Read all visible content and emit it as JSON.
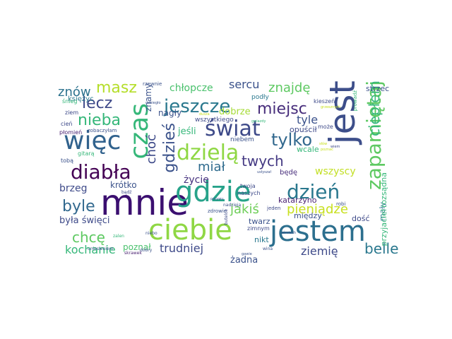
{
  "words": [
    {
      "text": "mnie",
      "color": "#3b0f70"
    },
    {
      "text": "gdzie",
      "color": "#27a38a"
    },
    {
      "text": "ciebie",
      "color": "#8fd744"
    },
    {
      "text": "jestem",
      "color": "#2c6f8e"
    },
    {
      "text": "jest",
      "color": "#3d4e8a"
    },
    {
      "text": "więc",
      "color": "#31628d"
    },
    {
      "text": "czas",
      "color": "#35b779"
    },
    {
      "text": "świat",
      "color": "#3e4a89"
    },
    {
      "text": "dzielą",
      "color": "#8fd744"
    },
    {
      "text": "diabła",
      "color": "#440154"
    },
    {
      "text": "dzień",
      "color": "#2a788e"
    },
    {
      "text": "zapamiętaj",
      "color": "#5ec962"
    },
    {
      "text": "jeszcze",
      "color": "#2a788e"
    },
    {
      "text": "gdzieś",
      "color": "#3b528b"
    },
    {
      "text": "nieba",
      "color": "#35b779"
    },
    {
      "text": "lecz",
      "color": "#3e4989"
    },
    {
      "text": "tylko",
      "color": "#31688e"
    },
    {
      "text": "ciepłem",
      "color": "#35b779"
    },
    {
      "text": "miejsc",
      "color": "#472d7b"
    },
    {
      "text": "masz",
      "color": "#b5de2b"
    },
    {
      "text": "znów",
      "color": "#2c728e"
    },
    {
      "text": "znajdę",
      "color": "#5ec962"
    },
    {
      "text": "sercu",
      "color": "#3b528b"
    },
    {
      "text": "chłopcze",
      "color": "#4ac16d"
    },
    {
      "text": "miał",
      "color": "#2f6b8e"
    },
    {
      "text": "twych",
      "color": "#443983"
    },
    {
      "text": "choć",
      "color": "#3e4a89"
    },
    {
      "text": "tyle",
      "color": "#3b528b"
    },
    {
      "text": "byle",
      "color": "#31688e"
    },
    {
      "text": "jakiś",
      "color": "#6ece58"
    },
    {
      "text": "pieniądze",
      "color": "#c8e020"
    },
    {
      "text": "chcę",
      "color": "#5ec962"
    },
    {
      "text": "belle",
      "color": "#2a788e"
    },
    {
      "text": "kochanie",
      "color": "#35b779"
    },
    {
      "text": "trudniej",
      "color": "#3e4a89"
    },
    {
      "text": "ziemię",
      "color": "#3e4a89"
    },
    {
      "text": "brzeg",
      "color": "#3e4a89"
    },
    {
      "text": "krótko",
      "color": "#3b528b"
    },
    {
      "text": "życie",
      "color": "#46317e"
    },
    {
      "text": "wszyscy",
      "color": "#c2df23"
    },
    {
      "text": "była święci",
      "color": "#3e4a89"
    },
    {
      "text": "poznał",
      "color": "#4ac16d"
    },
    {
      "text": "żadna",
      "color": "#3b528b"
    },
    {
      "text": "nagły",
      "color": "#3b528b"
    },
    {
      "text": "dobrze",
      "color": "#a5db36"
    },
    {
      "text": "jeśli",
      "color": "#35b779"
    },
    {
      "text": "opuścił",
      "color": "#3e4a89"
    },
    {
      "text": "katarzyno",
      "color": "#481f70"
    },
    {
      "text": "mały",
      "color": "#2a788e"
    },
    {
      "text": "między",
      "color": "#3b528b"
    },
    {
      "text": "dość",
      "color": "#3e4a89"
    },
    {
      "text": "twarz",
      "color": "#3b528b"
    },
    {
      "text": "nikt",
      "color": "#2a788e"
    },
    {
      "text": "będę",
      "color": "#472d7b"
    },
    {
      "text": "wcale",
      "color": "#35b779"
    },
    {
      "text": "znamy",
      "color": "#3b528b"
    },
    {
      "text": "rozsądna",
      "color": "#35b779"
    },
    {
      "text": "przyjaciel",
      "color": "#35b779"
    },
    {
      "text": "strzec",
      "color": "#3b528b"
    },
    {
      "text": "księżyc",
      "color": "#2a788e"
    },
    {
      "text": "wszystkiego",
      "color": "#3e4a89"
    },
    {
      "text": "niebem",
      "color": "#3b528b"
    },
    {
      "text": "podły",
      "color": "#2a788e"
    },
    {
      "text": "kieszeń",
      "color": "#3e4a89"
    },
    {
      "text": "naszych",
      "color": "#3e4a89"
    },
    {
      "text": "twoja",
      "color": "#3e4a89"
    },
    {
      "text": "zimnym",
      "color": "#3e4a89"
    },
    {
      "text": "śnieg",
      "color": "#35b779"
    },
    {
      "text": "ziem",
      "color": "#3e4a89"
    },
    {
      "text": "cień",
      "color": "#3e4a89"
    },
    {
      "text": "płomień",
      "color": "#481f70"
    },
    {
      "text": "zobaczyłam",
      "color": "#3b528b"
    },
    {
      "text": "gitarą",
      "color": "#35b779"
    },
    {
      "text": "tobą",
      "color": "#3b528b"
    },
    {
      "text": "rzewnie",
      "color": "#3b528b"
    },
    {
      "text": "może",
      "color": "#3e4a89"
    },
    {
      "text": "prowadź",
      "color": "#35b779"
    },
    {
      "text": "robi",
      "color": "#3b528b"
    },
    {
      "text": "zdrowie",
      "color": "#3b528b"
    },
    {
      "text": "jeden",
      "color": "#3e4a89"
    },
    {
      "text": "nadzieją",
      "color": "#3b528b"
    },
    {
      "text": "uniesieniem",
      "color": "#3b528b"
    },
    {
      "text": "skrawek",
      "color": "#481f70"
    },
    {
      "text": "zalen",
      "color": "#35b779"
    },
    {
      "text": "bądź",
      "color": "#3e4a89"
    },
    {
      "text": "dobry",
      "color": "#3b528b"
    },
    {
      "text": "niebo",
      "color": "#3b528b"
    },
    {
      "text": "wina",
      "color": "#3b528b"
    },
    {
      "text": "butelce",
      "color": "#3e4a89"
    },
    {
      "text": "porywu",
      "color": "#3b528b"
    },
    {
      "text": "uśmiech",
      "color": "#3b528b"
    },
    {
      "text": "gwiazdy",
      "color": "#35b779"
    },
    {
      "text": "grzesznych",
      "color": "#c8e020"
    },
    {
      "text": "poznać",
      "color": "#c8e020"
    },
    {
      "text": "słów",
      "color": "#c8e020"
    },
    {
      "text": "dobiegło",
      "color": "#3b528b"
    },
    {
      "text": "wiem",
      "color": "#3e4a89"
    },
    {
      "text": "gawie",
      "color": "#3b528b"
    },
    {
      "text": "usłyszał",
      "color": "#3b528b"
    },
    {
      "text": "dusza",
      "color": "#c8e020"
    }
  ]
}
